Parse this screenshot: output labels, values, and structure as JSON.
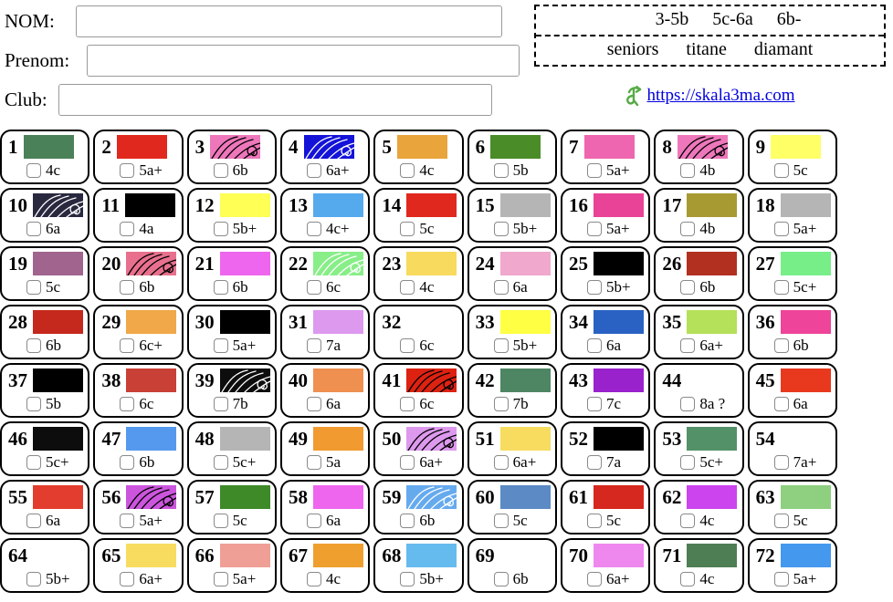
{
  "form": {
    "fields": [
      {
        "name": "nom",
        "label": "NOM:",
        "value": ""
      },
      {
        "name": "prenom",
        "label": "Prenom:",
        "value": ""
      },
      {
        "name": "club",
        "label": "Club:",
        "value": ""
      }
    ]
  },
  "categories": {
    "grade_ranges": [
      "3-5b",
      "5c-6a",
      "6b-"
    ],
    "names": [
      "seniors",
      "titane",
      "diamant"
    ]
  },
  "link": {
    "text": "https://skala3ma.com"
  },
  "colors": {
    "cell_border": "#000000",
    "link_blue": "#0000dd",
    "icon_green": "#55aa44"
  },
  "routes": [
    {
      "num": 1,
      "grade": "4c",
      "color": "#4a8159",
      "pattern": null
    },
    {
      "num": 2,
      "grade": "5a+",
      "color": "#e0281e",
      "pattern": null
    },
    {
      "num": 3,
      "grade": "6b",
      "color": "#ee77bb",
      "pattern": "black-swirl"
    },
    {
      "num": 4,
      "grade": "6a+",
      "color": "#1413d8",
      "pattern": "white-swirl"
    },
    {
      "num": 5,
      "grade": "4c",
      "color": "#e9a43c",
      "pattern": null
    },
    {
      "num": 6,
      "grade": "5b",
      "color": "#4a8c28",
      "pattern": null
    },
    {
      "num": 7,
      "grade": "5a+",
      "color": "#ee66b0",
      "pattern": null
    },
    {
      "num": 8,
      "grade": "4b",
      "color": "#ee77bb",
      "pattern": "black-swirl"
    },
    {
      "num": 9,
      "grade": "5c",
      "color": "#ffff66",
      "pattern": null
    },
    {
      "num": 10,
      "grade": "6a",
      "color": "#28283f",
      "pattern": "white-swirl"
    },
    {
      "num": 11,
      "grade": "4a",
      "color": "#000000",
      "pattern": null
    },
    {
      "num": 12,
      "grade": "5b+",
      "color": "#ffff55",
      "pattern": null
    },
    {
      "num": 13,
      "grade": "4c+",
      "color": "#55aaee",
      "pattern": null
    },
    {
      "num": 14,
      "grade": "5c",
      "color": "#e0281e",
      "pattern": null
    },
    {
      "num": 15,
      "grade": "5b+",
      "color": "#b5b5b5",
      "pattern": null
    },
    {
      "num": 16,
      "grade": "5a+",
      "color": "#e84397",
      "pattern": null
    },
    {
      "num": 17,
      "grade": "4b",
      "color": "#a89a32",
      "pattern": null
    },
    {
      "num": 18,
      "grade": "5a+",
      "color": "#b5b5b5",
      "pattern": null
    },
    {
      "num": 19,
      "grade": "5c",
      "color": "#a0648e",
      "pattern": null
    },
    {
      "num": 20,
      "grade": "6b",
      "color": "#e8708e",
      "pattern": "black-swirl"
    },
    {
      "num": 21,
      "grade": "6b",
      "color": "#ee66ee",
      "pattern": null
    },
    {
      "num": 22,
      "grade": "6c",
      "color": "#88ee88",
      "pattern": "white-swirl"
    },
    {
      "num": 23,
      "grade": "4c",
      "color": "#f7da5e",
      "pattern": null
    },
    {
      "num": 24,
      "grade": "6a",
      "color": "#f0a8cc",
      "pattern": null
    },
    {
      "num": 25,
      "grade": "5b+",
      "color": "#000000",
      "pattern": null
    },
    {
      "num": 26,
      "grade": "6b",
      "color": "#b23020",
      "pattern": null
    },
    {
      "num": 27,
      "grade": "5c+",
      "color": "#77ee88",
      "pattern": null
    },
    {
      "num": 28,
      "grade": "6b",
      "color": "#c5281c",
      "pattern": null
    },
    {
      "num": 29,
      "grade": "6c+",
      "color": "#f0a848",
      "pattern": null
    },
    {
      "num": 30,
      "grade": "5a+",
      "color": "#000000",
      "pattern": null
    },
    {
      "num": 31,
      "grade": "7a",
      "color": "#dd99ee",
      "pattern": null
    },
    {
      "num": 32,
      "grade": "6c",
      "color": null,
      "pattern": null
    },
    {
      "num": 33,
      "grade": "5b+",
      "color": "#ffff44",
      "pattern": null
    },
    {
      "num": 34,
      "grade": "6a",
      "color": "#2a62c4",
      "pattern": null
    },
    {
      "num": 35,
      "grade": "6a+",
      "color": "#b5e05a",
      "pattern": null
    },
    {
      "num": 36,
      "grade": "6b",
      "color": "#ee4499",
      "pattern": null
    },
    {
      "num": 37,
      "grade": "5b",
      "color": "#000000",
      "pattern": null
    },
    {
      "num": 38,
      "grade": "6c",
      "color": "#c94036",
      "pattern": null
    },
    {
      "num": 39,
      "grade": "7b",
      "color": "#0d0d0d",
      "pattern": "white-swirl"
    },
    {
      "num": 40,
      "grade": "6a",
      "color": "#ef9050",
      "pattern": null
    },
    {
      "num": 41,
      "grade": "6c",
      "color": "#dd2211",
      "pattern": "black-swirl"
    },
    {
      "num": 42,
      "grade": "7b",
      "color": "#4e8563",
      "pattern": null
    },
    {
      "num": 43,
      "grade": "7c",
      "color": "#9922cc",
      "pattern": null
    },
    {
      "num": 44,
      "grade": "8a ?",
      "color": null,
      "pattern": null
    },
    {
      "num": 45,
      "grade": "6a",
      "color": "#e8391f",
      "pattern": null
    },
    {
      "num": 46,
      "grade": "5c+",
      "color": "#0d0d0d",
      "pattern": null
    },
    {
      "num": 47,
      "grade": "6b",
      "color": "#5599ee",
      "pattern": null
    },
    {
      "num": 48,
      "grade": "5c+",
      "color": "#b5b5b5",
      "pattern": null
    },
    {
      "num": 49,
      "grade": "5a",
      "color": "#f09a30",
      "pattern": null
    },
    {
      "num": 50,
      "grade": "6a+",
      "color": "#dd99ee",
      "pattern": "black-swirl"
    },
    {
      "num": 51,
      "grade": "6a+",
      "color": "#f7dc60",
      "pattern": null
    },
    {
      "num": 52,
      "grade": "7a",
      "color": "#000000",
      "pattern": null
    },
    {
      "num": 53,
      "grade": "5c+",
      "color": "#539168",
      "pattern": null
    },
    {
      "num": 54,
      "grade": "7a+",
      "color": null,
      "pattern": null
    },
    {
      "num": 55,
      "grade": "6a",
      "color": "#e23d2e",
      "pattern": null
    },
    {
      "num": 56,
      "grade": "5a+",
      "color": "#cc55dd",
      "pattern": "black-swirl"
    },
    {
      "num": 57,
      "grade": "5c",
      "color": "#3e8a28",
      "pattern": null
    },
    {
      "num": 58,
      "grade": "6a",
      "color": "#ee66ee",
      "pattern": null
    },
    {
      "num": 59,
      "grade": "6b",
      "color": "#66aaee",
      "pattern": "white-swirl"
    },
    {
      "num": 60,
      "grade": "5c",
      "color": "#5b8ac5",
      "pattern": null
    },
    {
      "num": 61,
      "grade": "5c",
      "color": "#d6281e",
      "pattern": null
    },
    {
      "num": 62,
      "grade": "4c",
      "color": "#cc44ee",
      "pattern": null
    },
    {
      "num": 63,
      "grade": "5c",
      "color": "#8ed080",
      "pattern": null
    },
    {
      "num": 64,
      "grade": "5b+",
      "color": null,
      "pattern": null
    },
    {
      "num": 65,
      "grade": "6a+",
      "color": "#f7dc60",
      "pattern": null
    },
    {
      "num": 66,
      "grade": "5a+",
      "color": "#ef9f96",
      "pattern": null
    },
    {
      "num": 67,
      "grade": "4c",
      "color": "#ef9f2e",
      "pattern": null
    },
    {
      "num": 68,
      "grade": "5b+",
      "color": "#66bbee",
      "pattern": null
    },
    {
      "num": 69,
      "grade": "6b",
      "color": null,
      "pattern": null
    },
    {
      "num": 70,
      "grade": "6a+",
      "color": "#ee88ee",
      "pattern": null
    },
    {
      "num": 71,
      "grade": "4c",
      "color": "#4e7e53",
      "pattern": null
    },
    {
      "num": 72,
      "grade": "5a+",
      "color": "#4499ee",
      "pattern": null
    }
  ]
}
